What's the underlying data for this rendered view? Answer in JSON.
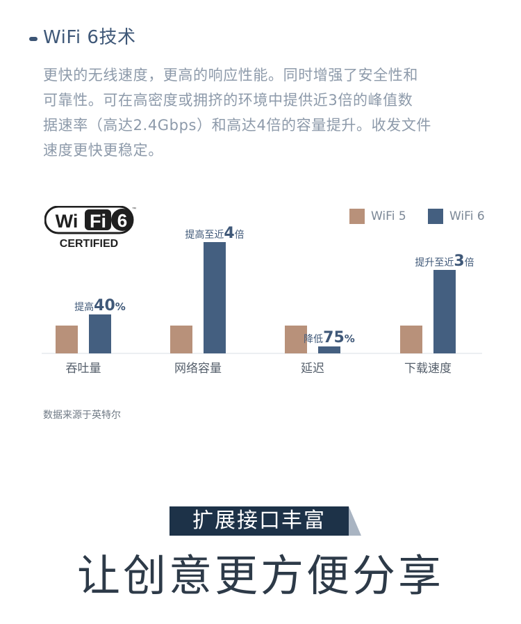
{
  "heading": {
    "title": "WiFi 6技术"
  },
  "paragraph": {
    "lines": [
      "更快的无线速度，更高的响应性能。同时增强了安全性和",
      "可靠性。可在高密度或拥挤的环境中提供近3倍的峰值数",
      "据速率（高达2.4Gbps）和高达4倍的容量提升。收发文件",
      "速度更快更稳定。"
    ]
  },
  "logo": {
    "wi": "Wi",
    "fi": "Fi",
    "six": "6",
    "tm": "™",
    "certified": "CERTIFIED",
    "icon": "wifi6-certified-logo"
  },
  "chart_data": {
    "type": "bar",
    "categories": [
      "吞吐量",
      "网络容量",
      "延迟",
      "下载速度"
    ],
    "series": [
      {
        "name": "WiFi 5",
        "color": "#b8917a",
        "values": [
          1,
          1,
          1,
          1
        ]
      },
      {
        "name": "WiFi 6",
        "color": "#445f80",
        "values": [
          1.4,
          4,
          0.25,
          3
        ]
      }
    ],
    "annotations": [
      {
        "prefix": "提高",
        "big": "40",
        "suffix": "%"
      },
      {
        "prefix": "提高至近",
        "big": "4",
        "suffix": "倍"
      },
      {
        "prefix": "降低",
        "big": "75",
        "suffix": "%"
      },
      {
        "prefix": "提升至近",
        "big": "3",
        "suffix": "倍"
      }
    ],
    "ylim": [
      0,
      4
    ],
    "legend_position": "top-right",
    "grid": false
  },
  "source_note": "数据来源于英特尔",
  "colors": {
    "navy": "#1d3248",
    "accent": "#3f5878",
    "wifi5": "#b8917a",
    "wifi6": "#445f80"
  },
  "bottom": {
    "banner": "扩展接口丰富",
    "title": "让创意更方便分享"
  }
}
